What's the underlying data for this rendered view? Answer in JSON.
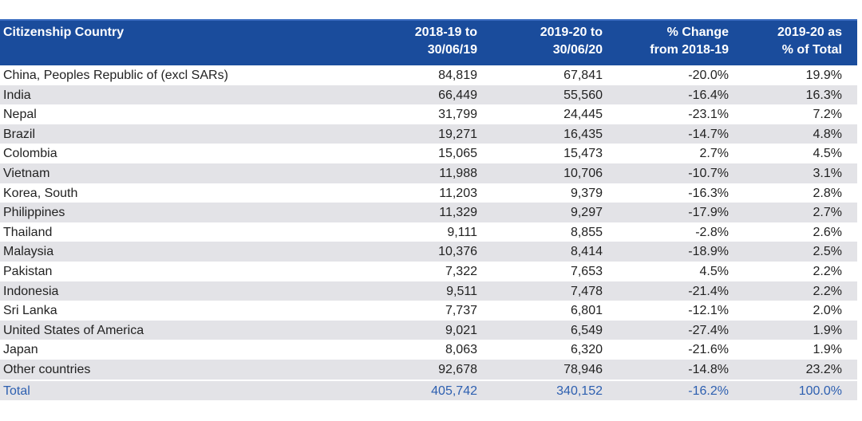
{
  "headers": [
    "Citizenship Country",
    "2018-19 to\n30/06/19",
    "2019-20 to\n30/06/20",
    "% Change\nfrom 2018-19",
    "2019-20 as\n% of Total"
  ],
  "rows": [
    [
      "China, Peoples Republic of (excl SARs)",
      "84,819",
      "67,841",
      "-20.0%",
      "19.9%"
    ],
    [
      "India",
      "66,449",
      "55,560",
      "-16.4%",
      "16.3%"
    ],
    [
      "Nepal",
      "31,799",
      "24,445",
      "-23.1%",
      "7.2%"
    ],
    [
      "Brazil",
      "19,271",
      "16,435",
      "-14.7%",
      "4.8%"
    ],
    [
      "Colombia",
      "15,065",
      "15,473",
      "2.7%",
      "4.5%"
    ],
    [
      "Vietnam",
      "11,988",
      "10,706",
      "-10.7%",
      "3.1%"
    ],
    [
      "Korea, South",
      "11,203",
      "9,379",
      "-16.3%",
      "2.8%"
    ],
    [
      "Philippines",
      "11,329",
      "9,297",
      "-17.9%",
      "2.7%"
    ],
    [
      "Thailand",
      "9,111",
      "8,855",
      "-2.8%",
      "2.6%"
    ],
    [
      "Malaysia",
      "10,376",
      "8,414",
      "-18.9%",
      "2.5%"
    ],
    [
      "Pakistan",
      "7,322",
      "7,653",
      "4.5%",
      "2.2%"
    ],
    [
      "Indonesia",
      "9,511",
      "7,478",
      "-21.4%",
      "2.2%"
    ],
    [
      "Sri Lanka",
      "7,737",
      "6,801",
      "-12.1%",
      "2.0%"
    ],
    [
      "United States of America",
      "9,021",
      "6,549",
      "-27.4%",
      "1.9%"
    ],
    [
      "Japan",
      "8,063",
      "6,320",
      "-21.6%",
      "1.9%"
    ],
    [
      "Other countries",
      "92,678",
      "78,946",
      "-14.8%",
      "23.2%"
    ]
  ],
  "total": [
    "Total",
    "405,742",
    "340,152",
    "-16.2%",
    "100.0%"
  ],
  "colors": {
    "header_bg": "#1a4c9c",
    "alt_row": "#e3e3e7",
    "total_text": "#2d5fb0"
  }
}
